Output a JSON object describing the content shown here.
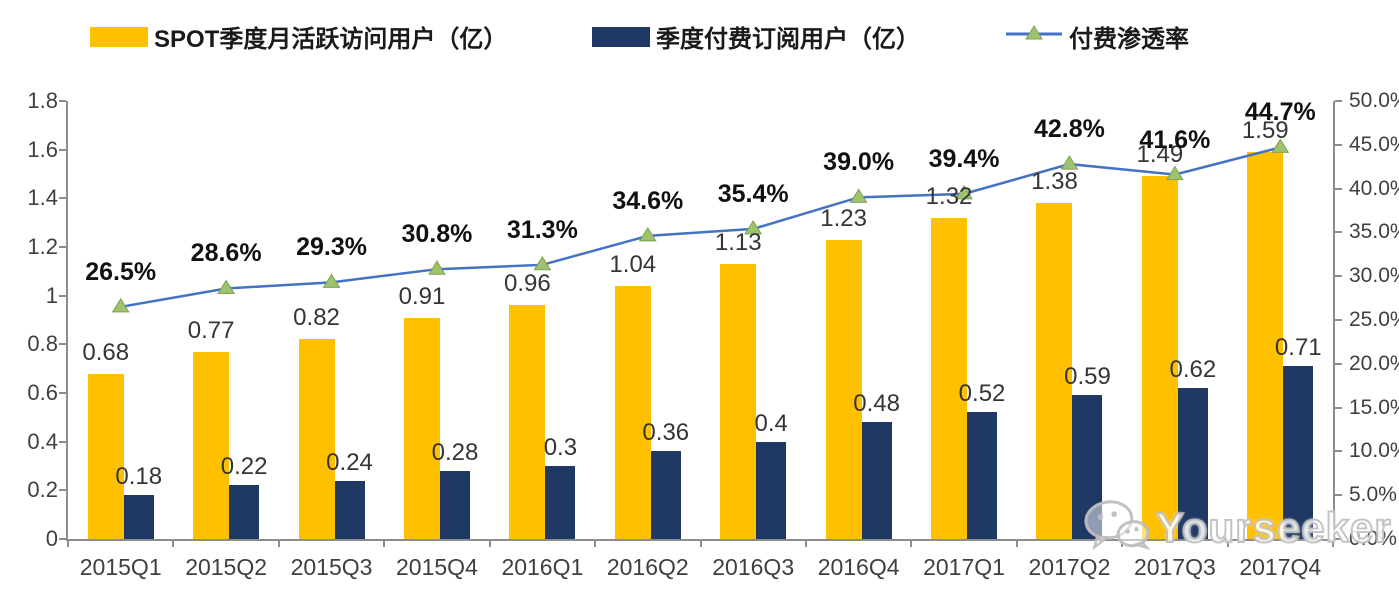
{
  "chart_data": {
    "type": "bar",
    "categories": [
      "2015Q1",
      "2015Q2",
      "2015Q3",
      "2015Q4",
      "2016Q1",
      "2016Q2",
      "2016Q3",
      "2016Q4",
      "2017Q1",
      "2017Q2",
      "2017Q3",
      "2017Q4"
    ],
    "series": [
      {
        "name": "SPOT季度月活跃访问用户（亿）",
        "chart_type": "bar",
        "axis": "left",
        "color": "#FFC000",
        "values": [
          0.68,
          0.77,
          0.82,
          0.91,
          0.96,
          1.04,
          1.13,
          1.23,
          1.32,
          1.38,
          1.49,
          1.59
        ],
        "labels": [
          "0.68",
          "0.77",
          "0.82",
          "0.91",
          "0.96",
          "1.04",
          "1.13",
          "1.23",
          "1.32",
          "1.38",
          "1.49",
          "1.59"
        ]
      },
      {
        "name": "季度付费订阅用户（亿）",
        "chart_type": "bar",
        "axis": "left",
        "color": "#1F3864",
        "values": [
          0.18,
          0.22,
          0.24,
          0.28,
          0.3,
          0.36,
          0.4,
          0.48,
          0.52,
          0.59,
          0.62,
          0.71
        ],
        "labels": [
          "0.18",
          "0.22",
          "0.24",
          "0.28",
          "0.3",
          "0.36",
          "0.4",
          "0.48",
          "0.52",
          "0.59",
          "0.62",
          "0.71"
        ]
      },
      {
        "name": "付费渗透率",
        "chart_type": "line",
        "axis": "right",
        "color": "#4472C4",
        "marker": "triangle",
        "marker_color": "#9EC36E",
        "values": [
          26.5,
          28.6,
          29.3,
          30.8,
          31.3,
          34.6,
          35.4,
          39.0,
          39.4,
          42.8,
          41.6,
          44.7
        ],
        "labels": [
          "26.5%",
          "28.6%",
          "29.3%",
          "30.8%",
          "31.3%",
          "34.6%",
          "35.4%",
          "39.0%",
          "39.4%",
          "42.8%",
          "41.6%",
          "44.7%"
        ]
      }
    ],
    "left_axis": {
      "min": 0,
      "max": 1.8,
      "step": 0.2,
      "tick_labels": [
        "0",
        "0.2",
        "0.4",
        "0.6",
        "0.8",
        "1",
        "1.2",
        "1.4",
        "1.6",
        "1.8"
      ]
    },
    "right_axis": {
      "min": 0,
      "max": 50,
      "step": 5,
      "tick_labels": [
        "0.0%",
        "5.0%",
        "10.0%",
        "15.0%",
        "20.0%",
        "25.0%",
        "30.0%",
        "35.0%",
        "40.0%",
        "45.0%",
        "50.0%"
      ]
    },
    "grid": false,
    "legend_position": "top"
  },
  "watermark": {
    "text": "Yourseeker",
    "icon": "wechat"
  }
}
